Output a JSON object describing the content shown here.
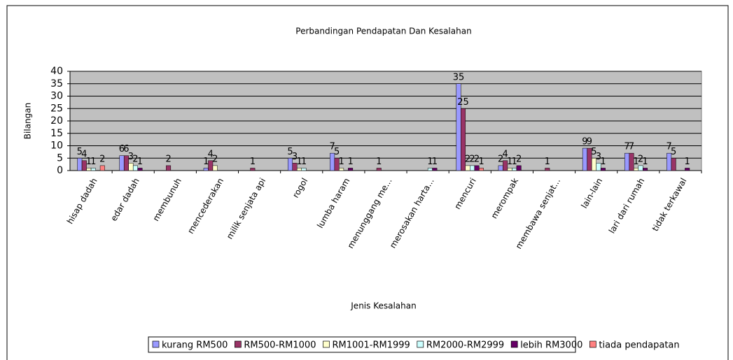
{
  "chart_data": {
    "type": "bar",
    "title": "Perbandingan Pendapatan Dan Kesalahan",
    "x_label": "Jenis Kesalahan",
    "y_label": "Bilangan",
    "categories": [
      "hisap dadah",
      "edar dadah",
      "membunuh",
      "mencederakan",
      "milik senjata api",
      "rogol",
      "lumba haram",
      "menunggang me...",
      "merosakan harta...",
      "mencuri",
      "merompak",
      "membawa senjat...",
      "lain-lain",
      "lari dari rumah",
      "tidak terkawal"
    ],
    "series": [
      {
        "name": "kurang RM500",
        "color": "#9999ff",
        "values": [
          5,
          6,
          null,
          1,
          null,
          5,
          7,
          null,
          null,
          35,
          2,
          null,
          9,
          7,
          7
        ]
      },
      {
        "name": "RM500-RM1000",
        "color": "#993366",
        "values": [
          4,
          6,
          2,
          4,
          1,
          3,
          5,
          1,
          null,
          25,
          4,
          1,
          9,
          7,
          5
        ]
      },
      {
        "name": "RM1001-RM1999",
        "color": "#ffffcc",
        "values": [
          1,
          3,
          null,
          2,
          null,
          1,
          1,
          null,
          null,
          2,
          1,
          null,
          5,
          1,
          null
        ]
      },
      {
        "name": "RM2000-RM2999",
        "color": "#ccffff",
        "values": [
          1,
          2,
          null,
          null,
          null,
          1,
          null,
          null,
          1,
          2,
          1,
          null,
          3,
          2,
          null
        ]
      },
      {
        "name": "lebih RM3000",
        "color": "#660066",
        "values": [
          null,
          1,
          null,
          null,
          null,
          null,
          1,
          null,
          1,
          2,
          2,
          null,
          1,
          1,
          1
        ]
      },
      {
        "name": "tiada pendapatan",
        "color": "#ff8080",
        "values": [
          2,
          null,
          null,
          null,
          null,
          null,
          null,
          null,
          null,
          1,
          null,
          null,
          null,
          null,
          null
        ]
      }
    ],
    "ylim": [
      0,
      40
    ],
    "yticks": [
      0,
      5,
      10,
      15,
      20,
      25,
      30,
      35,
      40
    ],
    "grid": true,
    "legend": "bottom"
  }
}
